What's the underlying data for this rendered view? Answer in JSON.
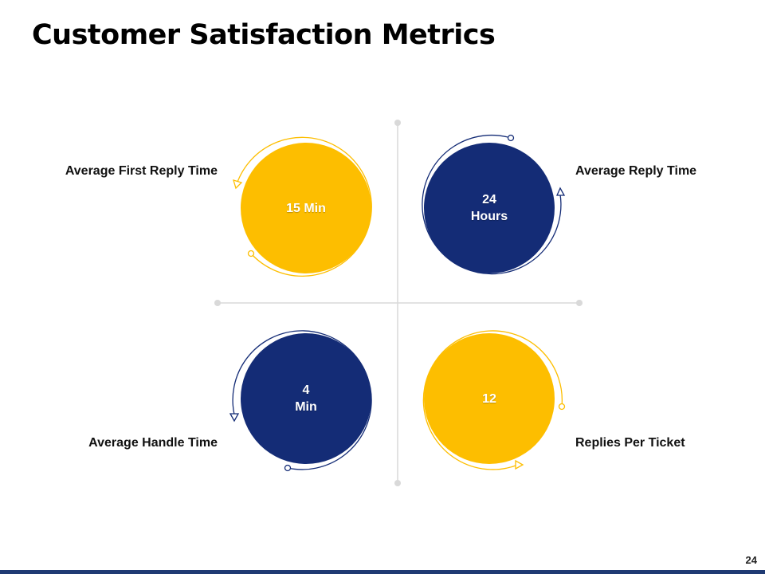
{
  "slide": {
    "title": "Customer Satisfaction Metrics",
    "page_number": "24"
  },
  "metrics": [
    {
      "label": "Average First Reply Time",
      "value": "15 Min"
    },
    {
      "label": "Average Reply Time",
      "value": "24\nHours"
    },
    {
      "label": "Average Handle Time",
      "value": "4\nMin"
    },
    {
      "label": "Replies Per Ticket",
      "value": "12"
    }
  ],
  "colors": {
    "yellow": "#FDBE00",
    "navy": "#142C76",
    "axis": "#D9D9D9",
    "footer_bar": "#1F3A73"
  }
}
